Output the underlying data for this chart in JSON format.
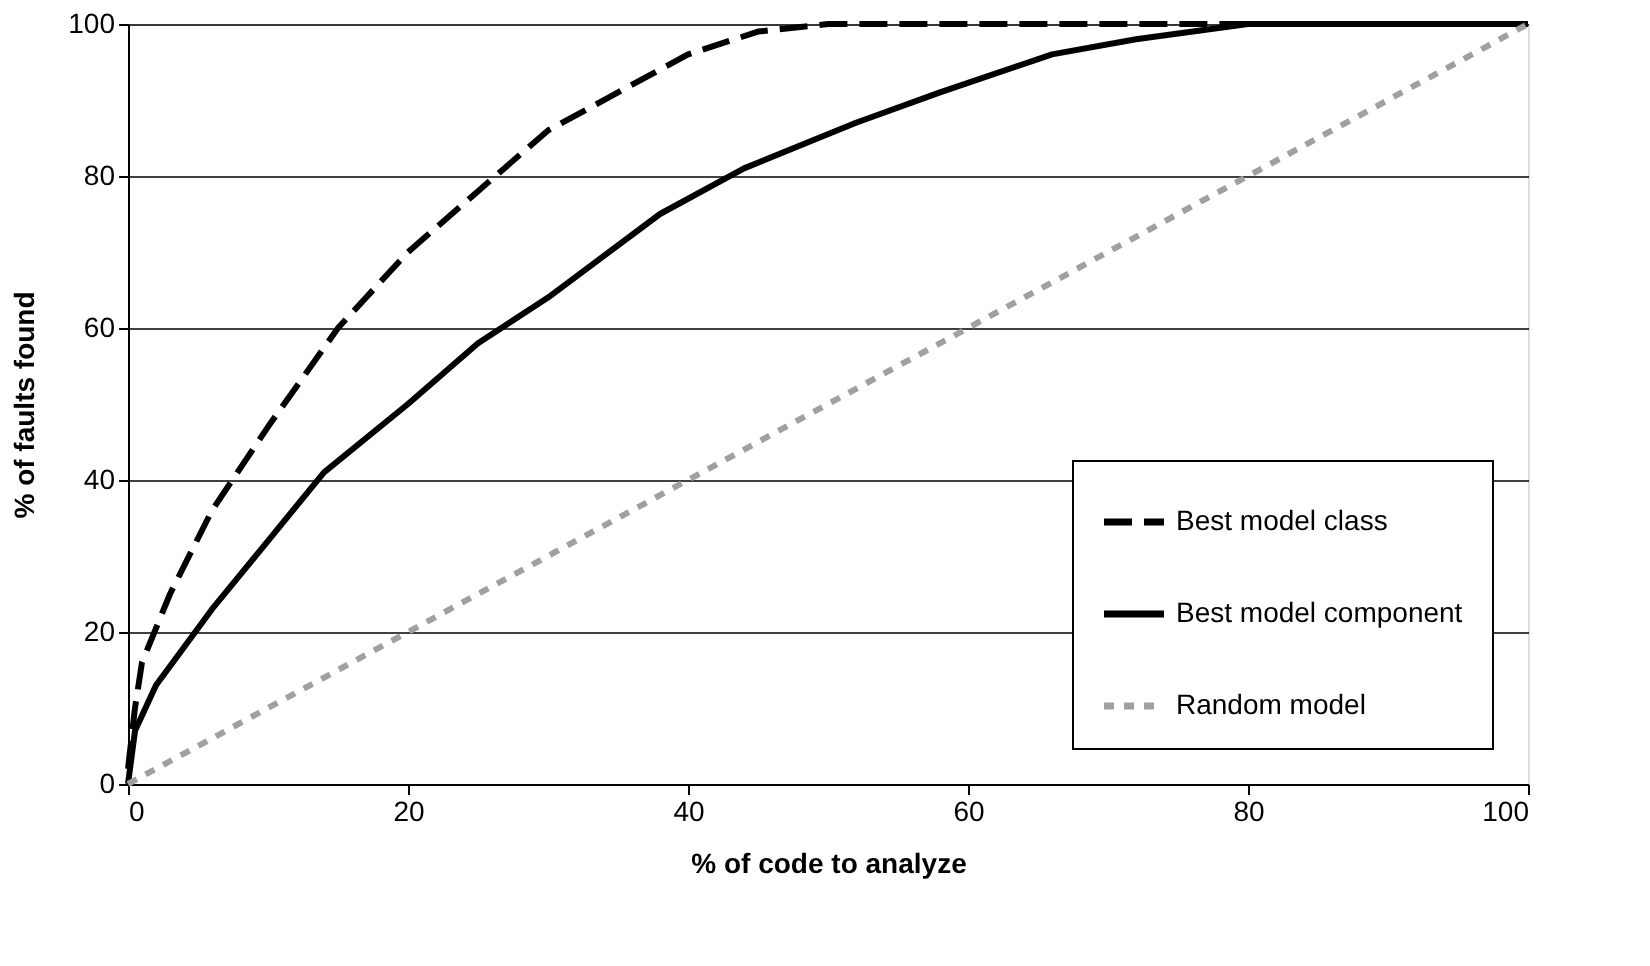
{
  "chart_data": {
    "type": "line",
    "xlabel": "% of code to analyze",
    "ylabel": "% of faults found",
    "xlim": [
      0,
      100
    ],
    "ylim": [
      0,
      100
    ],
    "xticks": [
      0,
      20,
      40,
      60,
      80,
      100
    ],
    "yticks": [
      0,
      20,
      40,
      60,
      80,
      100
    ],
    "grid": "y",
    "legend": "bottom right",
    "marker": "none",
    "series": [
      {
        "name": "Best model class",
        "color": "#000000",
        "line_style": "dashed",
        "x": [
          0,
          0.5,
          1,
          3,
          6,
          10,
          15,
          20,
          25,
          30,
          35,
          40,
          45,
          50,
          100
        ],
        "values": [
          2,
          10,
          16,
          25,
          36,
          47,
          60,
          70,
          78,
          86,
          91,
          96,
          99,
          100,
          100
        ]
      },
      {
        "name": "Best model component",
        "color": "#000000",
        "line_style": "solid",
        "x": [
          0,
          0.5,
          2,
          6,
          10,
          14,
          20,
          25,
          30,
          38,
          44,
          52,
          58,
          66,
          72,
          80,
          100
        ],
        "values": [
          0,
          7,
          13,
          23,
          32,
          41,
          50,
          58,
          64,
          75,
          81,
          87,
          91,
          96,
          98,
          100,
          100
        ]
      },
      {
        "name": "Random model",
        "color": "#a0a0a0",
        "line_style": "dotted",
        "x": [
          0,
          100
        ],
        "values": [
          0,
          100
        ]
      }
    ]
  }
}
